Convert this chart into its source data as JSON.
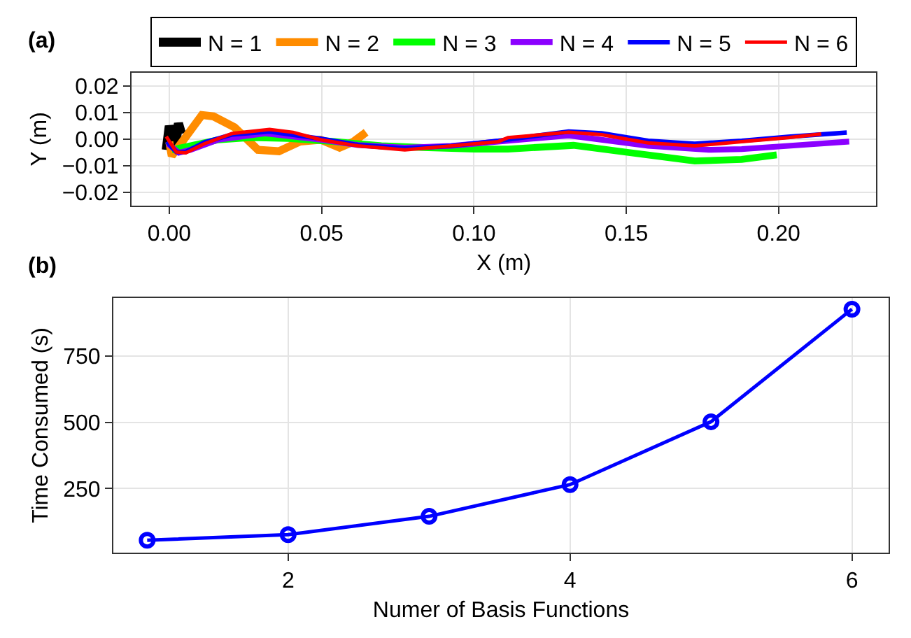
{
  "chart_data": [
    {
      "type": "line",
      "annotations": [
        "(a)"
      ],
      "xlabel": "X (m)",
      "ylabel": "Y (m)",
      "legend": "top",
      "grid": true,
      "line_style": "solid",
      "marker": "none",
      "xlim": [
        -0.0124,
        0.232
      ],
      "ylim": [
        -0.025,
        0.025
      ],
      "xticks": [
        {
          "value": 0,
          "label": "0.00"
        },
        {
          "value": 0.05,
          "label": "0.05"
        },
        {
          "value": 0.1,
          "label": "0.10"
        },
        {
          "value": 0.15,
          "label": "0.15"
        },
        {
          "value": 0.2,
          "label": "0.20"
        }
      ],
      "yticks": [
        {
          "value": -0.02,
          "label": "−0.02"
        },
        {
          "value": -0.01,
          "label": "−0.01"
        },
        {
          "value": 0,
          "label": "0.00"
        },
        {
          "value": 0.01,
          "label": "0.01"
        },
        {
          "value": 0.02,
          "label": "0.02"
        }
      ],
      "series": [
        {
          "name": "N = 1",
          "color": "#000000",
          "x": [
            -0.001,
            0.0,
            0.002,
            0.003,
            0.004
          ],
          "values": [
            -0.004,
            0.005,
            -0.003,
            0.006,
            0.002
          ]
        },
        {
          "name": "N = 2",
          "color": "#ff8c00",
          "x": [
            0.0,
            0.0008,
            0.0107,
            0.0145,
            0.0214,
            0.0291,
            0.036,
            0.0429,
            0.0497,
            0.0559,
            0.0605,
            0.0646
          ],
          "values": [
            -0.001,
            -0.0063,
            0.0091,
            0.0086,
            0.0045,
            -0.004,
            -0.0045,
            -0.0009,
            -0.0002,
            -0.0032,
            -0.0009,
            0.0026
          ]
        },
        {
          "name": "N = 3",
          "color": "#00ff00",
          "x": [
            0.0008,
            0.0069,
            0.0161,
            0.0268,
            0.039,
            0.0543,
            0.0696,
            0.085,
            0.1003,
            0.1112,
            0.1327,
            0.1495,
            0.1725,
            0.1879,
            0.1994
          ],
          "values": [
            -0.004,
            -0.0025,
            -0.0002,
            0.0006,
            0.0003,
            -0.0009,
            -0.0025,
            -0.0032,
            -0.0037,
            -0.0037,
            -0.0023,
            -0.0048,
            -0.0082,
            -0.0076,
            -0.0059
          ]
        },
        {
          "name": "N = 4",
          "color": "#8b00ff",
          "x": [
            -0.0005,
            0.0031,
            0.0069,
            0.0161,
            0.0314,
            0.0497,
            0.062,
            0.0773,
            0.0926,
            0.108,
            0.1311,
            0.1572,
            0.1771,
            0.1879,
            0.2032,
            0.2232
          ],
          "values": [
            -0.0017,
            -0.0051,
            -0.004,
            -0.0002,
            0.0022,
            -0.0002,
            -0.0022,
            -0.0032,
            -0.0025,
            -0.0009,
            0.0014,
            -0.0025,
            -0.004,
            -0.0037,
            -0.0025,
            -0.0009
          ]
        },
        {
          "name": "N = 5",
          "color": "#0000ff",
          "x": [
            -0.0008,
            0.0023,
            0.0054,
            0.0115,
            0.0207,
            0.0329,
            0.0497,
            0.062,
            0.0773,
            0.0926,
            0.108,
            0.1311,
            0.1419,
            0.1572,
            0.1725,
            0.1879,
            0.2032,
            0.2224
          ],
          "values": [
            -0.0009,
            -0.0048,
            -0.0048,
            -0.0012,
            0.0018,
            0.0029,
            0.0002,
            -0.0022,
            -0.0035,
            -0.0025,
            -0.0006,
            0.0029,
            0.0022,
            -0.0006,
            -0.0017,
            -0.0006,
            0.0009,
            0.0025
          ]
        },
        {
          "name": "N = 6",
          "color": "#ff0000",
          "x": [
            -0.001,
            0.0023,
            0.0054,
            0.0115,
            0.0207,
            0.0329,
            0.0406,
            0.0497,
            0.062,
            0.0773,
            0.0926,
            0.108,
            0.1112,
            0.1311,
            0.1419,
            0.1572,
            0.1725,
            0.1879,
            0.2032,
            0.214
          ],
          "values": [
            0.001,
            -0.0048,
            -0.0051,
            -0.0017,
            0.0022,
            0.0037,
            0.0026,
            -0.0002,
            -0.0025,
            -0.004,
            -0.0025,
            -0.0009,
            0.0006,
            0.0026,
            0.0017,
            -0.0014,
            -0.0025,
            -0.0009,
            0.0006,
            0.002
          ]
        }
      ]
    },
    {
      "type": "line",
      "annotations": [
        "(b)"
      ],
      "xlabel": "Numer of Basis Functions",
      "ylabel": "Time Consumed (s)",
      "legend": false,
      "grid": true,
      "line_style": "solid",
      "marker": "circle",
      "xlim": [
        0.76,
        6.26
      ],
      "ylim": [
        8,
        969
      ],
      "xticks": [
        2,
        4,
        6
      ],
      "yticks": [
        250,
        500,
        750
      ],
      "x": [
        1,
        2,
        3,
        4,
        5,
        6
      ],
      "series": [
        {
          "color": "#0000ff",
          "values": [
            55,
            76,
            145,
            265,
            502,
            927
          ]
        }
      ]
    }
  ]
}
